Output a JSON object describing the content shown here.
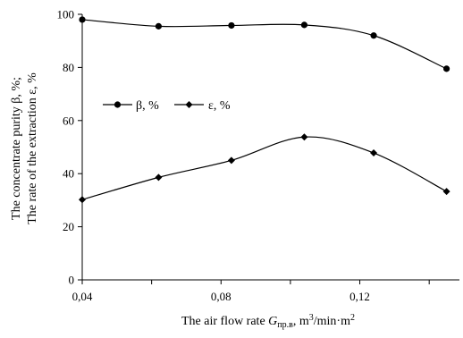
{
  "chart_data": {
    "type": "line",
    "x": [
      0.04,
      0.062,
      0.083,
      0.104,
      0.124,
      0.145
    ],
    "xlim": [
      0.04,
      0.15
    ],
    "ylim": [
      0,
      100
    ],
    "x_ticks": [
      0.04,
      0.08,
      0.12
    ],
    "x_tick_labels": [
      "0,04",
      "0,08",
      "0,12"
    ],
    "y_ticks": [
      0,
      20,
      40,
      60,
      80,
      100
    ],
    "y_tick_labels": [
      "0",
      "20",
      "40",
      "60",
      "80",
      "100"
    ],
    "grid": false,
    "legend_position": "center-left",
    "xlabel": {
      "prefix": "The air flow rate ",
      "symbol": "G",
      "subscript": "пр.в",
      "unit_main": ", m",
      "unit_sup1": "3",
      "unit_mid": "/min·m",
      "unit_sup2": "2"
    },
    "ylabel": {
      "line1": "The concentrate purity β, %;",
      "line2": "The rate of the extraction ε, %"
    },
    "series": [
      {
        "name": "β, %",
        "marker": "circle",
        "color": "#000000",
        "values": [
          98,
          95.5,
          95.8,
          96,
          92,
          79.5
        ]
      },
      {
        "name": "ε, %",
        "marker": "diamond",
        "color": "#000000",
        "values": [
          30.2,
          38.6,
          45,
          53.8,
          47.8,
          33.3
        ]
      }
    ]
  }
}
